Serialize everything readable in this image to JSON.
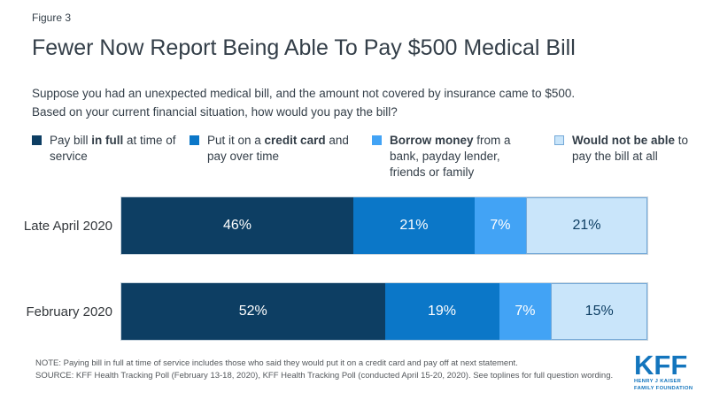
{
  "header": {
    "figure_label": "Figure 3",
    "title": "Fewer Now Report Being Able To Pay $500 Medical Bill",
    "subtitle_line1": "Suppose you had an unexpected medical bill, and the amount not covered by insurance came to $500.",
    "subtitle_line2": "Based on your current financial situation, how would you pay the bill?"
  },
  "legend": [
    {
      "key": "pay-in-full",
      "color": "#0D3E63",
      "parts": [
        {
          "text": "Pay bill ",
          "bold": false
        },
        {
          "text": "in full",
          "bold": true
        },
        {
          "text": " at time of service",
          "bold": false
        }
      ]
    },
    {
      "key": "credit-card",
      "color": "#0B77C8",
      "parts": [
        {
          "text": "Put it on a ",
          "bold": false
        },
        {
          "text": "credit card",
          "bold": true
        },
        {
          "text": " and pay over time",
          "bold": false
        }
      ]
    },
    {
      "key": "borrow-money",
      "color": "#42A3F5",
      "parts": [
        {
          "text": "Borrow money",
          "bold": true
        },
        {
          "text": " from a bank, payday lender, friends or family",
          "bold": false
        }
      ]
    },
    {
      "key": "not-able",
      "color": "#C9E5FA",
      "border": "#74A9D8",
      "parts": [
        {
          "text": "Would not be able",
          "bold": true
        },
        {
          "text": " to pay the bill at all",
          "bold": false
        }
      ]
    }
  ],
  "chart_data": {
    "type": "bar",
    "orientation": "horizontal",
    "stacked": true,
    "normalized_to_full_width": true,
    "value_suffix": "%",
    "categories": [
      "Late April 2020",
      "February 2020"
    ],
    "series": [
      {
        "key": "pay-in-full",
        "name": "Pay bill in full at time of service",
        "color": "#0D3E63",
        "label_color": "#FFFFFF",
        "values": [
          46,
          52
        ]
      },
      {
        "key": "credit-card",
        "name": "Put it on a credit card and pay over time",
        "color": "#0B77C8",
        "label_color": "#FFFFFF",
        "values": [
          21,
          19
        ]
      },
      {
        "key": "borrow-money",
        "name": "Borrow money from a bank, payday lender, friends or family",
        "color": "#42A3F5",
        "label_color": "#FFFFFF",
        "values": [
          7,
          7
        ]
      },
      {
        "key": "not-able",
        "name": "Would not be able to pay the bill at all",
        "color": "#C9E5FA",
        "border_color": "#74A9D8",
        "label_color": "#0D3E63",
        "values": [
          21,
          15
        ]
      }
    ],
    "title": "Fewer Now Report Being Able To Pay $500 Medical Bill",
    "xlabel": "",
    "ylabel": "",
    "legend_position": "top",
    "grid": false
  },
  "footer": {
    "note": "NOTE: Paying bill in full at time of service includes those who said they would put it on a credit card and pay off at next statement.",
    "source": "SOURCE: KFF Health Tracking Poll (February 13-18, 2020), KFF Health Tracking Poll (conducted April 15-20, 2020). See toplines for full question wording."
  },
  "logo": {
    "name": "KFF",
    "line1": "HENRY J KAISER",
    "line2": "FAMILY FOUNDATION"
  },
  "colors": {
    "kff_blue": "#1375BD",
    "text_dark": "#333E48",
    "footer_text": "#54585C",
    "bar_border": "#C9D5DE"
  }
}
